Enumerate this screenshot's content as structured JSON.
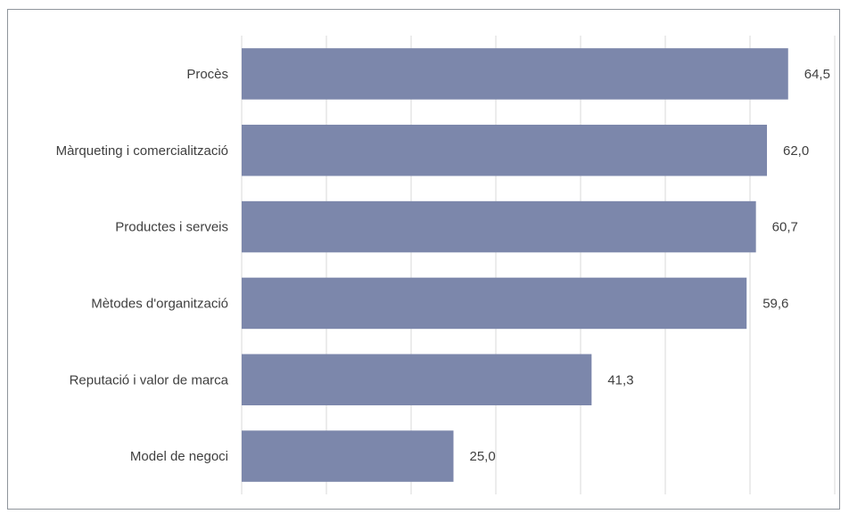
{
  "chart_data": {
    "type": "bar",
    "orientation": "horizontal",
    "categories": [
      "Procès",
      "Màrqueting i comercialització",
      "Productes i serveis",
      "Mètodes d'organització",
      "Reputació i valor de marca",
      "Model de negoci"
    ],
    "values": [
      64.5,
      62.0,
      60.7,
      59.6,
      41.3,
      25.0
    ],
    "value_labels": [
      "64,5",
      "62,0",
      "60,7",
      "59,6",
      "41,3",
      "25,0"
    ],
    "title": "",
    "xlabel": "",
    "ylabel": "",
    "xlim": [
      0,
      70
    ],
    "grid": true,
    "legend": "none",
    "colors": {
      "bar": "#7c87ab",
      "grid": "#d9d9d9",
      "text": "#404040",
      "border": "#8f959c"
    }
  }
}
